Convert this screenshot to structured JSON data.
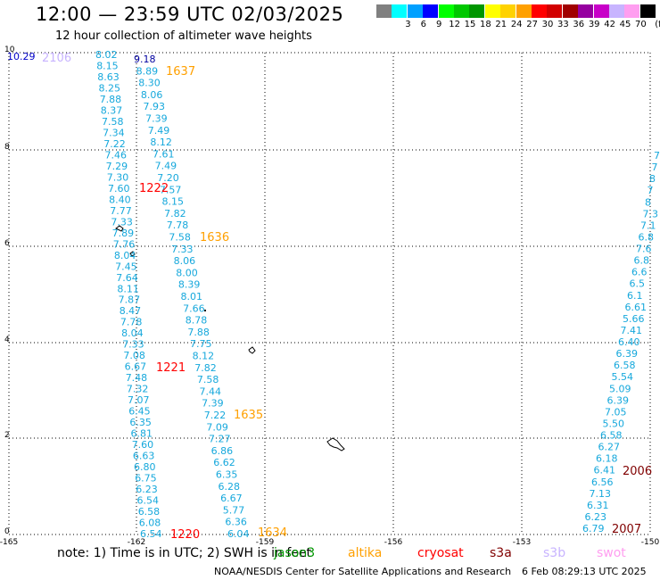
{
  "header": {
    "title": "12:00 — 23:59 UTC 02/03/2025",
    "subtitle": "12 hour collection of altimeter wave heights"
  },
  "legend": {
    "unit": "(ft)",
    "items": [
      {
        "label": "",
        "color": "#808080"
      },
      {
        "label": "3",
        "color": "#00ffff"
      },
      {
        "label": "6",
        "color": "#00a0ff"
      },
      {
        "label": "9",
        "color": "#0000ff"
      },
      {
        "label": "12",
        "color": "#00ff00"
      },
      {
        "label": "15",
        "color": "#00c800"
      },
      {
        "label": "18",
        "color": "#009600"
      },
      {
        "label": "21",
        "color": "#ffff00"
      },
      {
        "label": "24",
        "color": "#ffd200"
      },
      {
        "label": "27",
        "color": "#ffa000"
      },
      {
        "label": "30",
        "color": "#ff0000"
      },
      {
        "label": "33",
        "color": "#d20000"
      },
      {
        "label": "36",
        "color": "#a00000"
      },
      {
        "label": "39",
        "color": "#9600a0"
      },
      {
        "label": "42",
        "color": "#c800c8"
      },
      {
        "label": "45",
        "color": "#c8b4ff"
      },
      {
        "label": "70",
        "color": "#ff9ef0"
      },
      {
        "label": "",
        "color": "#000000"
      }
    ]
  },
  "axes": {
    "y_ticks": [
      "0",
      "2",
      "4",
      "6",
      "8",
      "10"
    ],
    "x_ticks": [
      "-165",
      "-162",
      "-159",
      "-156",
      "-153",
      "-150"
    ]
  },
  "map": {
    "first_value_label": "10.29",
    "passes": [
      {
        "label": "2106",
        "color": "#c8b4ff"
      },
      {
        "label": "1637",
        "color": "#ffa000"
      },
      {
        "label": "1222",
        "color": "#ff0000"
      },
      {
        "label": "1636",
        "color": "#ffa000"
      },
      {
        "label": "1221",
        "color": "#ff0000"
      },
      {
        "label": "1635",
        "color": "#ffa000"
      },
      {
        "label": "1220",
        "color": "#ff0000"
      },
      {
        "label": "1634",
        "color": "#ffa000"
      },
      {
        "label": "2006",
        "color": "#800000"
      },
      {
        "label": "2007",
        "color": "#800000"
      }
    ],
    "track1": [
      "8.02",
      "8.15",
      "8.63",
      "8.25",
      "7.88",
      "8.37",
      "7.58",
      "7.34",
      "7.22",
      "7.46",
      "7.29",
      "7.30",
      "7.60",
      "8.40",
      "7.77",
      "7.33",
      "7.89",
      "7.76",
      "8.04",
      "7.45",
      "7.64",
      "8.11",
      "7.87",
      "8.47",
      "7.78",
      "8.04",
      "7.33",
      "7.08",
      "6.67",
      "7.48",
      "7.32",
      "7.07",
      "6.45",
      "6.35",
      "6.81",
      "7.60",
      "6.63",
      "6.80",
      "6.75",
      "6.23",
      "6.54",
      "6.58",
      "6.08",
      "6.54"
    ],
    "track2": [
      "9.18",
      "8.89",
      "8.30",
      "8.06",
      "7.93",
      "7.39",
      "7.49",
      "8.12",
      "7.61",
      "7.49",
      "7.20",
      "7.57",
      "8.15",
      "7.82",
      "7.78",
      "7.58",
      "7.33",
      "8.06",
      "8.00",
      "8.39",
      "8.01",
      "7.66",
      "8.78",
      "7.88",
      "7.75",
      "8.12",
      "7.82",
      "7.58",
      "7.44",
      "7.39",
      "7.22",
      "7.09",
      "7.27",
      "6.86",
      "6.62",
      "6.35",
      "6.28",
      "6.67",
      "5.77",
      "6.36",
      "6.04"
    ],
    "track3": [
      "7",
      "7",
      "8",
      "7",
      "8",
      "7.3",
      "7.1",
      "6.8",
      "7.6",
      "6.8",
      "6.6",
      "6.5",
      "6.1",
      "6.61",
      "5.66",
      "7.41",
      "6.40",
      "6.39",
      "6.58",
      "5.54",
      "5.09",
      "6.39",
      "7.05",
      "5.50",
      "6.58",
      "6.27",
      "6.18",
      "6.41",
      "6.56",
      "7.13",
      "6.31",
      "6.23",
      "6.79"
    ]
  },
  "footer": {
    "note": "note: 1) Time is in UTC; 2) SWH is in feet",
    "satellites": [
      {
        "name": "jason3",
        "color": "#009600"
      },
      {
        "name": "altika",
        "color": "#ffa000"
      },
      {
        "name": "cryosat",
        "color": "#ff0000"
      },
      {
        "name": "s3a",
        "color": "#800000"
      },
      {
        "name": "s3b",
        "color": "#c8b4ff"
      },
      {
        "name": "swot",
        "color": "#ff9ef0"
      }
    ],
    "credit": "NOAA/NESDIS Center for Satellite Applications and Research",
    "timestamp": "6 Feb 08:29:13 UTC 2025"
  }
}
